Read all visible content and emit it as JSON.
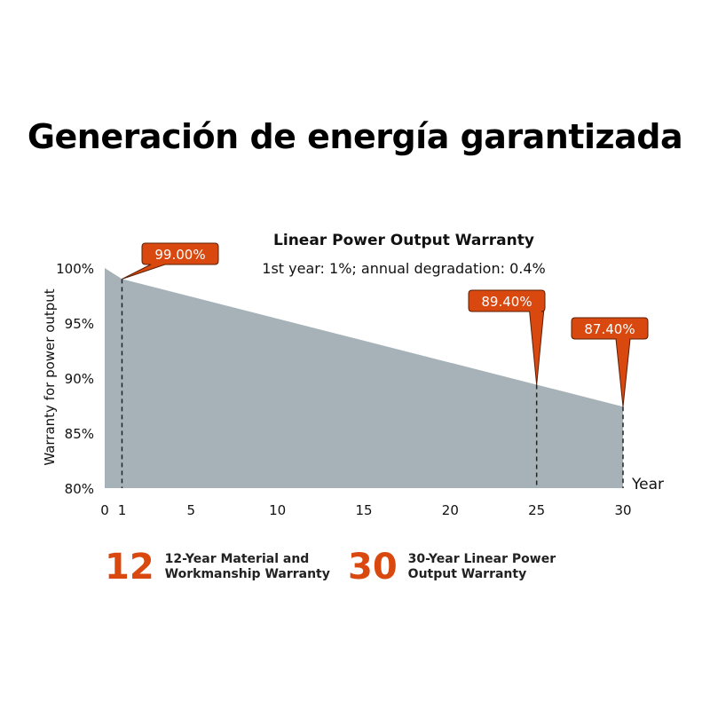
{
  "page": {
    "title": "Generación de energía garantizada"
  },
  "colors": {
    "area": "#a6b2b7",
    "accent": "#d9480f",
    "text": "#111111",
    "dash": "#222222"
  },
  "chart_data": {
    "type": "area",
    "title": "Linear Power Output Warranty",
    "subtitle": "1st year: 1%; annual degradation: 0.4%",
    "xlabel": "Year",
    "ylabel": "Warranty for power output",
    "xlim": [
      0,
      30
    ],
    "ylim": [
      80,
      100
    ],
    "x_ticks": [
      "0",
      "1",
      "5",
      "10",
      "15",
      "20",
      "25",
      "30"
    ],
    "y_ticks": [
      "80%",
      "85%",
      "90%",
      "95%",
      "100%"
    ],
    "grid": false,
    "x": [
      0,
      1,
      25,
      30
    ],
    "y": [
      100,
      99.0,
      89.4,
      87.4
    ],
    "callouts": [
      {
        "x": 1,
        "y": 99.0,
        "label": "99.00%"
      },
      {
        "x": 25,
        "y": 89.4,
        "label": "89.40%"
      },
      {
        "x": 30,
        "y": 87.4,
        "label": "87.40%"
      }
    ]
  },
  "warranties": [
    {
      "number": "12",
      "line1": "12-Year Material and",
      "line2": "Workmanship Warranty"
    },
    {
      "number": "30",
      "line1": "30-Year Linear Power",
      "line2": "Output Warranty"
    }
  ]
}
